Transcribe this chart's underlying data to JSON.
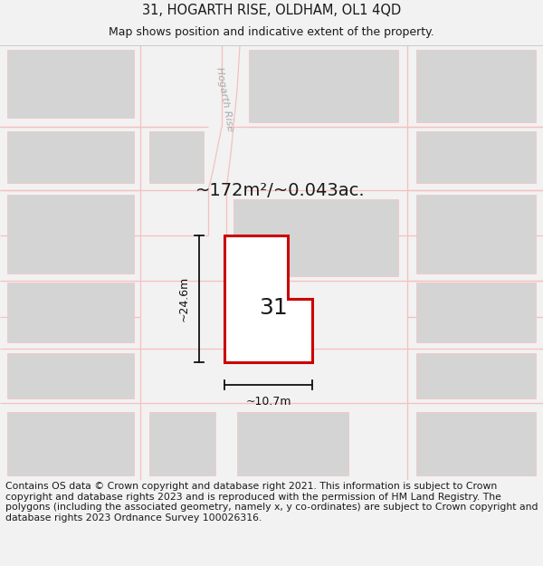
{
  "title_line1": "31, HOGARTH RISE, OLDHAM, OL1 4QD",
  "title_line2": "Map shows position and indicative extent of the property.",
  "footer_text": "Contains OS data © Crown copyright and database right 2021. This information is subject to Crown copyright and database rights 2023 and is reproduced with the permission of HM Land Registry. The polygons (including the associated geometry, namely x, y co-ordinates) are subject to Crown copyright and database rights 2023 Ordnance Survey 100026316.",
  "area_label": "~172m²/~0.043ac.",
  "width_label": "~10.7m",
  "height_label": "~24.6m",
  "plot_number": "31",
  "road_label": "Hogarth Rise",
  "bg_color": "#f2f2f2",
  "map_bg": "#ffffff",
  "road_color": "#f5c0c0",
  "building_fill": "#d4d4d4",
  "building_outline": "#f5c0c0",
  "plot_fill": "#ffffff",
  "plot_outline": "#cc0000",
  "text_color": "#1a1a1a",
  "dim_color": "#111111",
  "road_label_color": "#aaaaaa",
  "title_fontsize": 10.5,
  "subtitle_fontsize": 9,
  "footer_fontsize": 7.8,
  "area_fontsize": 14,
  "dim_fontsize": 9,
  "plot_num_fontsize": 18,
  "road_label_fontsize": 8
}
